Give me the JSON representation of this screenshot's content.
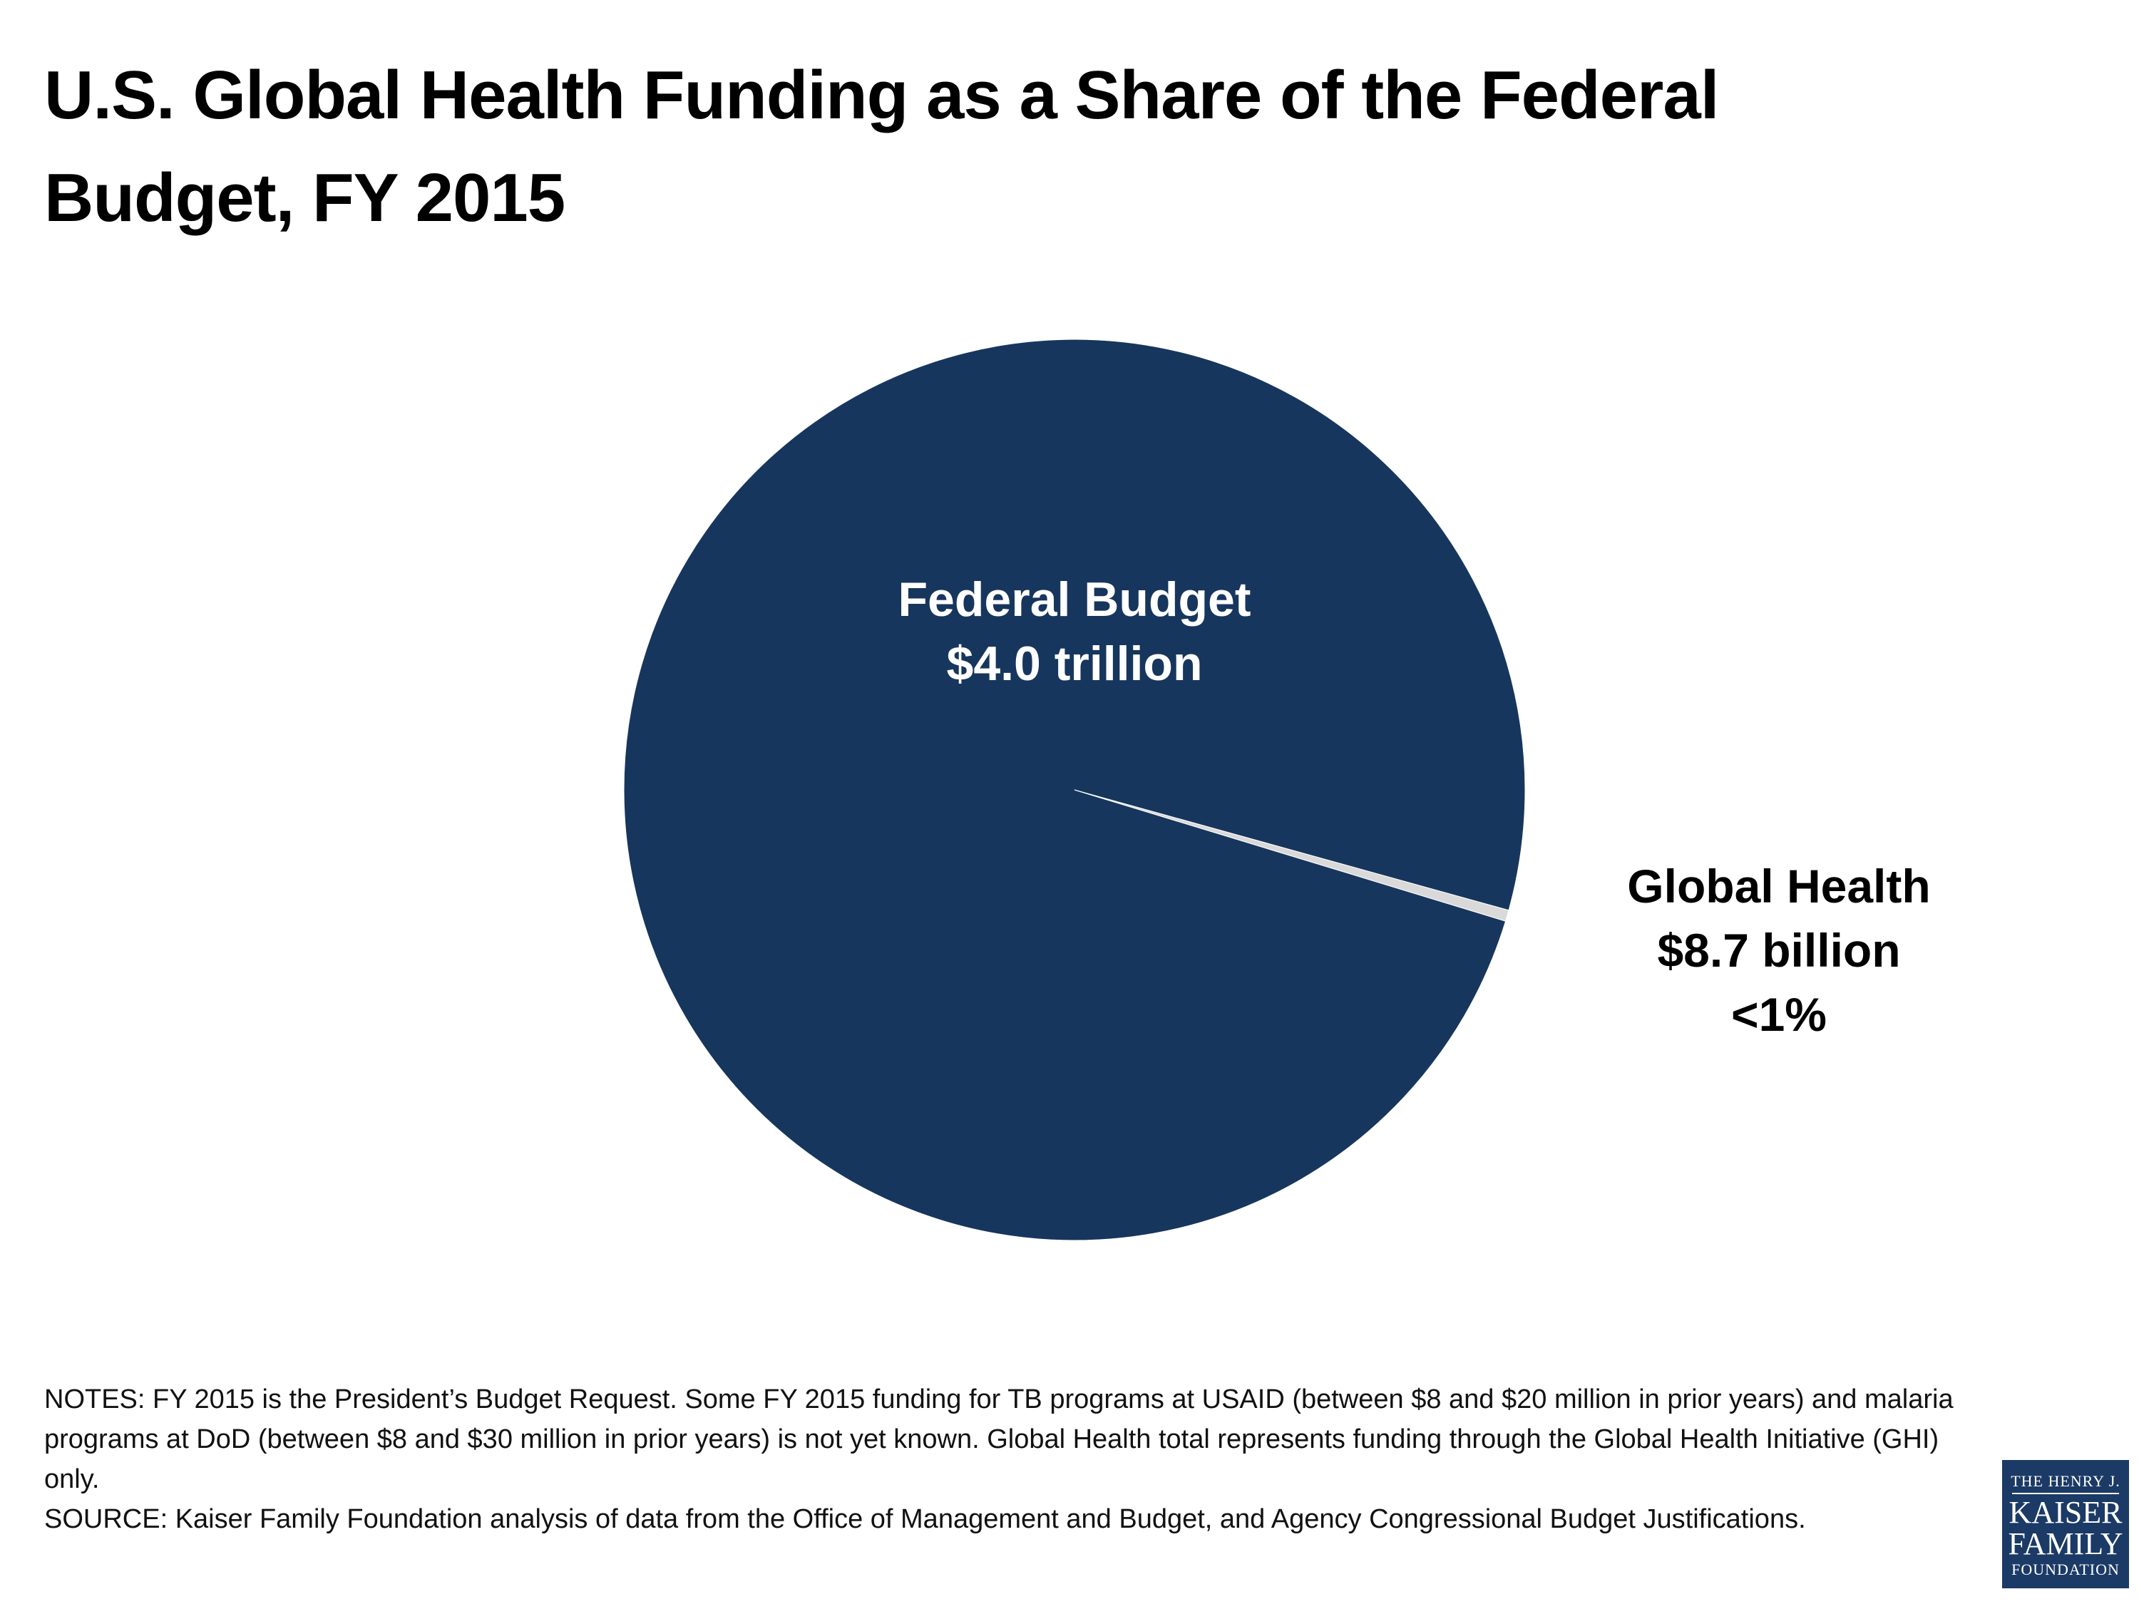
{
  "title": "U.S. Global Health Funding as a Share of the Federal Budget, FY 2015",
  "chart_data": {
    "type": "pie",
    "slices": [
      {
        "name": "Federal Budget",
        "value_label": "$4.0 trillion",
        "value_billions": 4000,
        "color": "#17365d"
      },
      {
        "name": "Global Health",
        "value_label": "$8.7 billion",
        "share_label": "<1%",
        "value_billions": 8.7,
        "color": "#d9d9d9"
      }
    ],
    "legend": "none",
    "labels": "on-slice and beside slice"
  },
  "notes": {
    "notes_text": "NOTES: FY 2015 is the President’s Budget Request. Some FY 2015 funding for TB programs at USAID (between $8 and $20 million in prior years) and malaria programs at DoD (between $8 and $30 million in prior years) is not yet known. Global Health total represents funding through the Global Health Initiative (GHI) only.",
    "source_text": "SOURCE: Kaiser Family Foundation analysis of data from the Office of Management and Budget, and Agency Congressional Budget Justifications."
  },
  "logo": {
    "line1": "THE HENRY J.",
    "line2": "KAISER",
    "line3": "FAMILY",
    "line4": "FOUNDATION",
    "color": "#1b3a66"
  }
}
